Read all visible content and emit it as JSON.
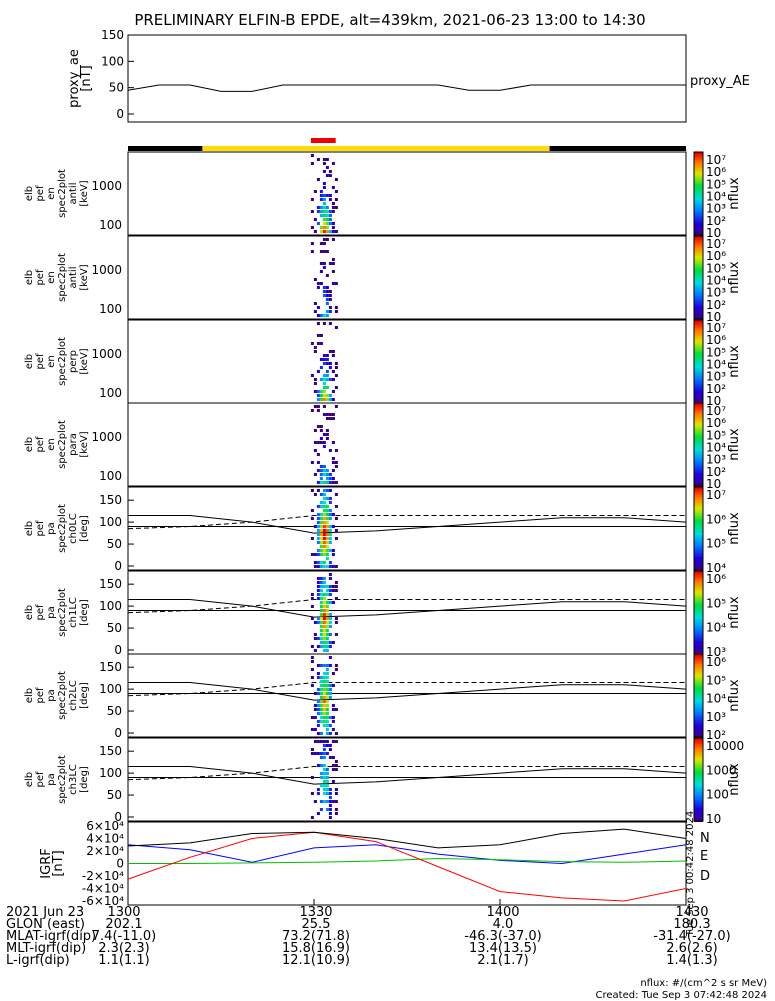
{
  "title": "PRELIMINARY ELFIN-B EPDE, alt=439km, 2021-06-23 13:00 to 14:30",
  "chart_data": [
    {
      "type": "line",
      "panel": "proxy_ae",
      "ylabel_lines": [
        "proxy_ae",
        "[nT]"
      ],
      "legend": "proxy_AE",
      "ylim": [
        0,
        150
      ],
      "yticks": [
        "150",
        "100",
        "50",
        "0"
      ],
      "x_minutes": [
        0,
        5,
        10,
        15,
        20,
        25,
        30,
        35,
        40,
        45,
        50,
        55,
        60,
        65,
        70,
        75,
        80,
        85,
        90
      ],
      "values": [
        45,
        55,
        55,
        43,
        43,
        55,
        55,
        55,
        55,
        55,
        55,
        45,
        45,
        55,
        55,
        55,
        55,
        55,
        55
      ]
    },
    {
      "type": "heatmap",
      "panel": "antilc",
      "ylabel_lines": [
        "elb",
        "pef",
        "en",
        "spec2plot",
        "antil",
        "[keV]"
      ],
      "yscale": "log",
      "yticks": [
        "1000",
        "100"
      ],
      "colorbar_label": "nflux",
      "colorbar_ticks": [
        "10⁷",
        "10⁶",
        "10⁵",
        "10⁴",
        "10³",
        "10²",
        "10"
      ],
      "active_interval_minutes": [
        29.5,
        33.5
      ],
      "peak_minute": 31.5
    },
    {
      "type": "heatmap",
      "panel": "antil",
      "ylabel_lines": [
        "elb",
        "pef",
        "en",
        "spec2plot",
        "antil",
        "[keV]"
      ],
      "yscale": "log",
      "yticks": [
        "1000",
        "100"
      ],
      "colorbar_label": "nflux",
      "colorbar_ticks": [
        "10⁷",
        "10⁶",
        "10⁵",
        "10⁴",
        "10³",
        "10²",
        "10"
      ],
      "active_interval_minutes": [
        29.5,
        33.5
      ],
      "peak_minute": 31.5
    },
    {
      "type": "heatmap",
      "panel": "perp",
      "ylabel_lines": [
        "elb",
        "pef",
        "en",
        "spec2plot",
        "perp",
        "[keV]"
      ],
      "yscale": "log",
      "yticks": [
        "1000",
        "100"
      ],
      "colorbar_label": "nflux",
      "colorbar_ticks": [
        "10⁷",
        "10⁶",
        "10⁵",
        "10⁴",
        "10³",
        "10²",
        "10"
      ],
      "active_interval_minutes": [
        29.5,
        33.5
      ],
      "peak_minute": 31.5
    },
    {
      "type": "heatmap",
      "panel": "para",
      "ylabel_lines": [
        "elb",
        "pef",
        "en",
        "spec2plot",
        "para",
        "[keV]"
      ],
      "yscale": "log",
      "yticks": [
        "1000",
        "100"
      ],
      "colorbar_label": "nflux",
      "colorbar_ticks": [
        "10⁷",
        "10⁶",
        "10⁵",
        "10⁴",
        "10³",
        "10²",
        "10"
      ],
      "active_interval_minutes": [
        29.5,
        33.5
      ],
      "peak_minute": 31.5
    },
    {
      "type": "heatmap",
      "panel": "ch0LC",
      "ylabel_lines": [
        "elb",
        "pef",
        "pa",
        "spec2plot",
        "ch0LC",
        "[deg]"
      ],
      "ylim": [
        0,
        180
      ],
      "yticks": [
        "150",
        "100",
        "50",
        "0"
      ],
      "colorbar_label": "nflux",
      "colorbar_ticks": [
        "10⁷",
        "10⁶",
        "10⁵",
        "10⁴"
      ],
      "active_interval_minutes": [
        29.5,
        33.5
      ],
      "peak_minute": 31.5
    },
    {
      "type": "heatmap",
      "panel": "ch1LC",
      "ylabel_lines": [
        "elb",
        "pef",
        "pa",
        "spec2plot",
        "ch1LC",
        "[deg]"
      ],
      "ylim": [
        0,
        180
      ],
      "yticks": [
        "150",
        "100",
        "50",
        "0"
      ],
      "colorbar_label": "nflux",
      "colorbar_ticks": [
        "10⁶",
        "10⁵",
        "10⁴",
        "10³"
      ],
      "active_interval_minutes": [
        29.5,
        33.5
      ],
      "peak_minute": 31.5
    },
    {
      "type": "heatmap",
      "panel": "ch2LC",
      "ylabel_lines": [
        "elb",
        "pef",
        "pa",
        "spec2plot",
        "ch2LC",
        "[deg]"
      ],
      "ylim": [
        0,
        180
      ],
      "yticks": [
        "150",
        "100",
        "50",
        "0"
      ],
      "colorbar_label": "nflux",
      "colorbar_ticks": [
        "10⁶",
        "10⁵",
        "10⁴",
        "10³",
        "10²"
      ],
      "active_interval_minutes": [
        29.5,
        33.5
      ],
      "peak_minute": 31.5
    },
    {
      "type": "heatmap",
      "panel": "ch3LC",
      "ylabel_lines": [
        "elb",
        "pef",
        "pa",
        "spec2plot",
        "ch3LC",
        "[deg]"
      ],
      "ylim": [
        0,
        180
      ],
      "yticks": [
        "150",
        "100",
        "50",
        "0"
      ],
      "colorbar_label": "nflux",
      "colorbar_ticks": [
        "10000",
        "1000",
        "100",
        "10"
      ],
      "active_interval_minutes": [
        29.5,
        33.5
      ],
      "peak_minute": 31.5
    },
    {
      "type": "line",
      "panel": "bt89_sm_NEU",
      "ylabel_lines": [
        "IGRF",
        "[nT]"
      ],
      "ylim": [
        -60000,
        60000
      ],
      "yticks": [
        "6×10⁴",
        "4×10⁴",
        "2×10⁴",
        "0",
        "-2×10⁴",
        "-4×10⁴",
        "-6×10⁴"
      ],
      "x_minutes": [
        0,
        10,
        20,
        30,
        40,
        50,
        60,
        70,
        80,
        90
      ],
      "series": [
        {
          "name": "N",
          "color": "#0000ff",
          "values": [
            30000,
            22000,
            2000,
            25000,
            30000,
            15000,
            5000,
            0,
            15000,
            30000
          ]
        },
        {
          "name": "E",
          "color": "#00c000",
          "values": [
            0,
            0,
            1000,
            2000,
            4000,
            8000,
            6000,
            3000,
            2000,
            4000
          ]
        },
        {
          "name": "D",
          "color": "#ff0000",
          "values": [
            -25000,
            10000,
            40000,
            50000,
            35000,
            -5000,
            -45000,
            -55000,
            -60000,
            -40000
          ]
        },
        {
          "name": "",
          "color": "#000000",
          "values": [
            28000,
            33000,
            48000,
            50000,
            40000,
            25000,
            30000,
            48000,
            55000,
            40000
          ]
        }
      ]
    }
  ],
  "x_axis": {
    "ticks": [
      "1300",
      "1330",
      "1400",
      "1430"
    ],
    "rows": [
      {
        "label": "2021 Jun 23",
        "values": [
          "1300",
          "1330",
          "1400",
          "1430"
        ]
      },
      {
        "label": "GLON (east)",
        "values": [
          "202.1",
          "25.5",
          "4.0",
          "180.3"
        ]
      },
      {
        "label": "MLAT-igrf(dip)",
        "values": [
          "7.4(-11.0)",
          "73.2(71.8)",
          "-46.3(-37.0)",
          "-31.4(-27.0)"
        ]
      },
      {
        "label": "MLT-igrf(dip)",
        "values": [
          "2.3(2.3)",
          "15.8(16.9)",
          "13.4(13.5)",
          "2.6(2.6)"
        ]
      },
      {
        "label": "L-igrf(dip)",
        "values": [
          "1.1(1.1)",
          "12.1(10.9)",
          "2.1(1.7)",
          "1.4(1.3)"
        ]
      }
    ]
  },
  "footer": {
    "units": "nflux: #/(cm^2 s sr MeV)",
    "created": "Created: Tue Sep  3 07:42:48 2024",
    "side_stamp": "Tue Sep  3 00:42:48 2024"
  },
  "colors": {
    "sunlight": "#ffdd00",
    "shadow": "#000000",
    "science_zone": "#ee0000"
  }
}
